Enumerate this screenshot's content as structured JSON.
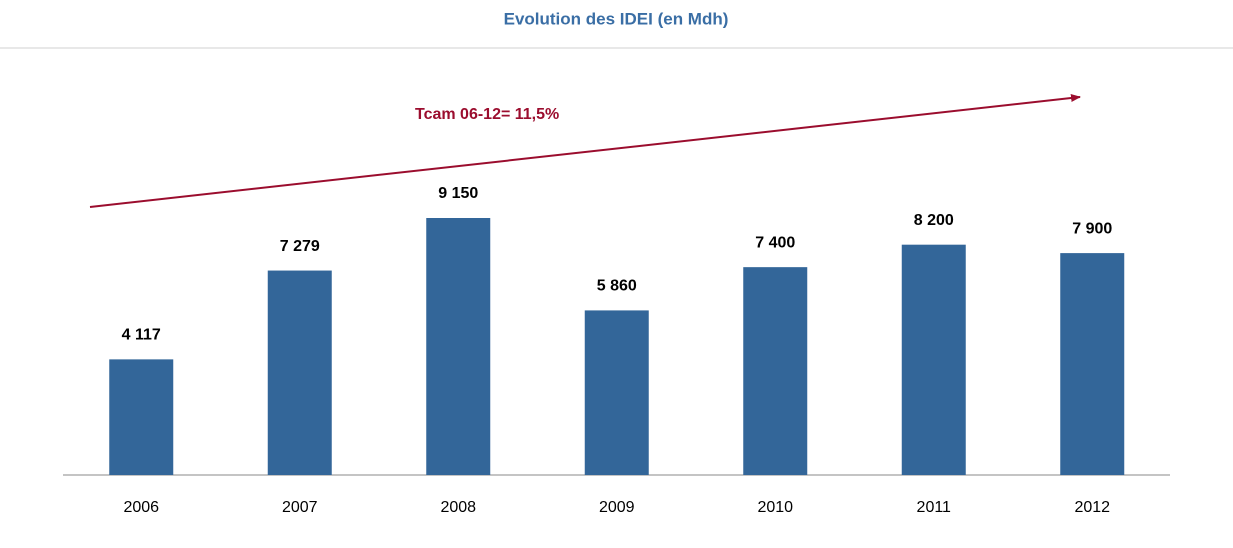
{
  "chart_data": {
    "type": "bar",
    "title": "Evolution des IDEI (en Mdh)",
    "annotation": "Tcam 06-12= 11,5%",
    "categories": [
      "2006",
      "2007",
      "2008",
      "2009",
      "2010",
      "2011",
      "2012"
    ],
    "values": [
      4117,
      7279,
      9150,
      5860,
      7400,
      8200,
      7900
    ],
    "value_labels": [
      "4 117",
      "7 279",
      "9 150",
      "5 860",
      "7 400",
      "8 200",
      "7 900"
    ],
    "color": "#336699"
  }
}
